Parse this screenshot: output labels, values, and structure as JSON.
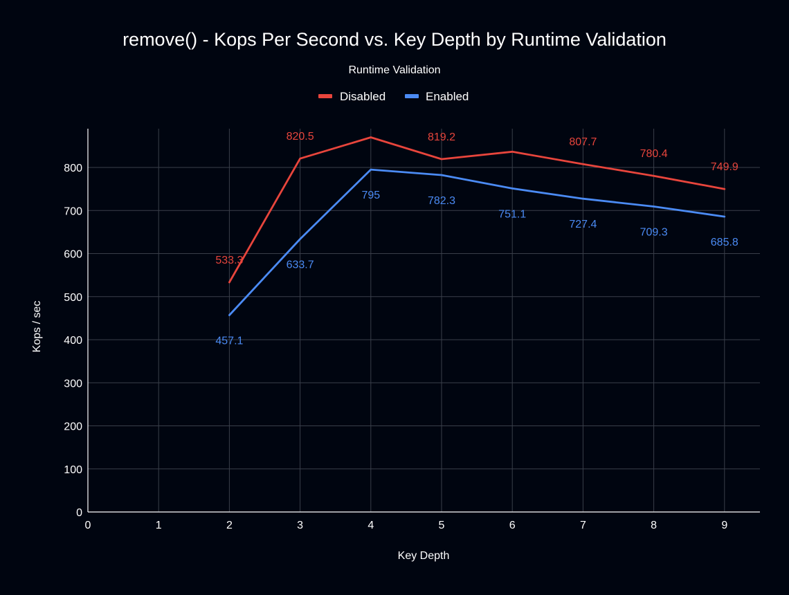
{
  "chart_data": {
    "type": "line",
    "title": "remove() - Kops Per Second vs. Key Depth by Runtime Validation",
    "legend_title": "Runtime Validation",
    "legend_position": "top-center",
    "xlabel": "Key Depth",
    "ylabel": "Kops / sec",
    "xlim": [
      0,
      9.5
    ],
    "ylim": [
      0,
      900
    ],
    "x_ticks": [
      0,
      1,
      2,
      3,
      4,
      5,
      6,
      7,
      8,
      9
    ],
    "y_ticks": [
      0,
      100,
      200,
      300,
      400,
      500,
      600,
      700,
      800
    ],
    "grid": true,
    "x": [
      2,
      3,
      4,
      5,
      6,
      7,
      8,
      9
    ],
    "series": [
      {
        "name": "Disabled",
        "color": "#e8453c",
        "values": [
          533.3,
          820.5,
          869.8,
          819.2,
          836.5,
          807.7,
          780.4,
          749.9
        ],
        "data_labels": [
          "533.3",
          "820.5",
          null,
          "819.2",
          null,
          "807.7",
          "780.4",
          "749.9"
        ]
      },
      {
        "name": "Enabled",
        "color": "#4b8bf4",
        "values": [
          457.1,
          633.7,
          795,
          782.3,
          751.1,
          727.4,
          709.3,
          685.8
        ],
        "data_labels": [
          "457.1",
          "633.7",
          "795",
          "782.3",
          "751.1",
          "727.4",
          "709.3",
          "685.8"
        ]
      }
    ],
    "colors": {
      "background": "#000510",
      "grid": "#3a3f4a",
      "axis": "#ffffff",
      "text": "#ffffff"
    }
  }
}
